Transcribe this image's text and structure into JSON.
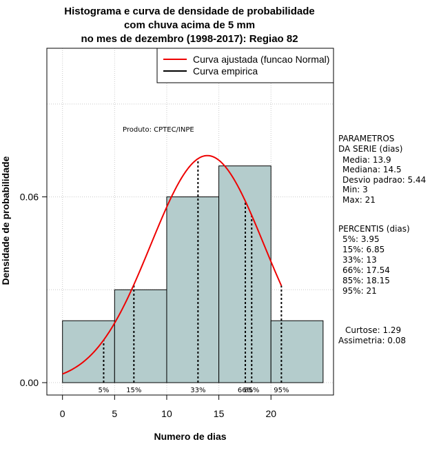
{
  "chart_data": {
    "type": "bar",
    "title_lines": [
      "Histograma e curva de densidade de probabilidade",
      "com chuva acima de 5 mm",
      "no mes de dezembro (1998-2017): Regiao 82"
    ],
    "xlabel": "Numero de dias",
    "ylabel": "Densidade de probabilidade",
    "xlim": [
      -1.5,
      26
    ],
    "ylim": [
      -0.004,
      0.108
    ],
    "xticks": [
      0,
      5,
      10,
      15,
      20
    ],
    "xtick_labels": [
      "0",
      "5",
      "10",
      "15",
      "20"
    ],
    "yticks": [
      0.0,
      0.06
    ],
    "ytick_labels": [
      "0.00",
      "0.06"
    ],
    "grid": true,
    "bins": [
      {
        "from": 0,
        "to": 5,
        "density": 0.02
      },
      {
        "from": 5,
        "to": 10,
        "density": 0.03
      },
      {
        "from": 10,
        "to": 15,
        "density": 0.06
      },
      {
        "from": 15,
        "to": 20,
        "density": 0.07
      },
      {
        "from": 20,
        "to": 25,
        "density": 0.02
      }
    ],
    "bar_color": "#b4cccc",
    "curve_color": "#ee0000",
    "normal_fit": {
      "mean": 13.9,
      "sd": 5.44,
      "x_from": 0,
      "x_to": 21
    },
    "percentile_lines": [
      {
        "label": "5%",
        "value": 3.95
      },
      {
        "label": "15%",
        "value": 6.85
      },
      {
        "label": "33%",
        "value": 13
      },
      {
        "label": "66%",
        "value": 17.54
      },
      {
        "label": "85%",
        "value": 18.15
      },
      {
        "label": "95%",
        "value": 21
      }
    ],
    "legend": {
      "position": "top-right",
      "entries": [
        {
          "label": "Curva ajustada (funcao Normal)",
          "color": "#ee0000"
        },
        {
          "label": "Curva empirica",
          "color": "#000000"
        }
      ]
    },
    "annotation": "Produto: CPTEC/INPE"
  },
  "side_panel": {
    "parameters": [
      "PARAMETROS",
      "DA SERIE (dias)",
      "Media: 13.9",
      "Mediana: 14.5",
      "Desvio padrao: 5.44",
      "Min: 3",
      "Max: 21"
    ],
    "percentiles": [
      "PERCENTIS (dias)",
      "5%: 3.95",
      "15%: 6.85",
      "33%: 13",
      "66%: 17.54",
      "85%: 18.15",
      "95%: 21"
    ],
    "shape": [
      "Curtose: 1.29",
      "Assimetria: 0.08"
    ]
  }
}
